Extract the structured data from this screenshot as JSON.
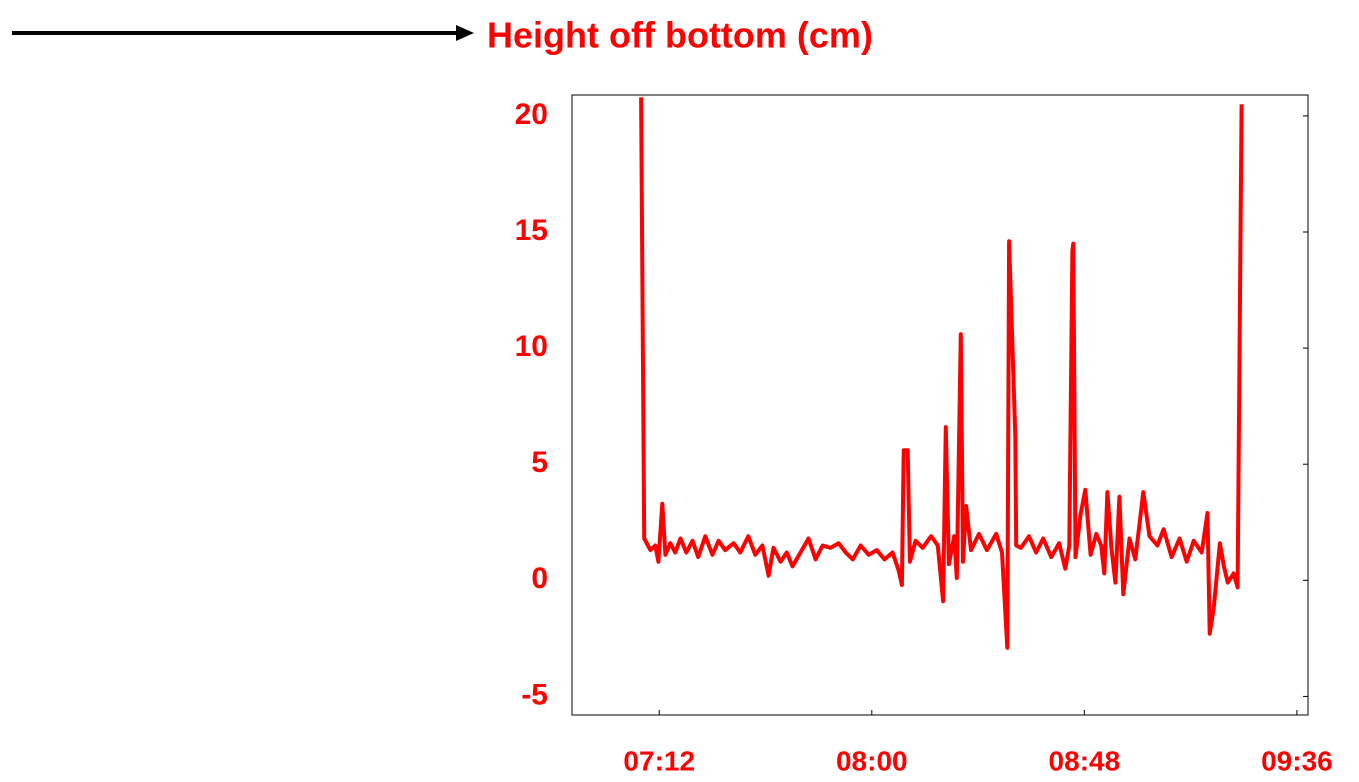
{
  "chart_data": {
    "type": "line",
    "title": "Height off bottom (cm)",
    "color": "#ff0000",
    "x": [
      427.9,
      428.6,
      430.0,
      431.1,
      431.8,
      432.7,
      433.4,
      434.5,
      435.6,
      436.8,
      438.1,
      439.5,
      440.8,
      442.4,
      444.0,
      445.4,
      446.9,
      448.8,
      450.3,
      452.1,
      453.7,
      455.3,
      456.7,
      457.8,
      459.4,
      460.8,
      462.1,
      463.9,
      465.7,
      467.3,
      468.9,
      470.7,
      472.5,
      474.1,
      475.7,
      477.5,
      479.3,
      481.1,
      482.9,
      484.7,
      486.1,
      486.8,
      487.2,
      488.1,
      488.6,
      489.9,
      491.5,
      493.4,
      494.9,
      496.1,
      496.7,
      497.4,
      498.6,
      499.2,
      500.1,
      500.6,
      501.3,
      502.4,
      504.2,
      506.0,
      508.1,
      509.4,
      510.6,
      511.0,
      512.4,
      512.6,
      513.7,
      515.5,
      517.1,
      518.7,
      520.5,
      522.3,
      523.7,
      524.6,
      525.3,
      525.5,
      526.0,
      527.1,
      528.2,
      529.4,
      530.7,
      531.8,
      532.5,
      533.2,
      534.1,
      535.0,
      535.9,
      536.8,
      538.2,
      539.5,
      541.3,
      542.7,
      544.5,
      545.9,
      547.7,
      549.5,
      551.1,
      552.7,
      554.5,
      555.8,
      556.3,
      557.2,
      558.6,
      559.5,
      560.4,
      561.7,
      562.6,
      563.5
    ],
    "values": [
      20.8,
      1.8,
      1.3,
      1.5,
      0.8,
      3.3,
      1.1,
      1.6,
      1.2,
      1.8,
      1.2,
      1.7,
      1.0,
      1.9,
      1.1,
      1.7,
      1.3,
      1.6,
      1.2,
      1.9,
      1.1,
      1.5,
      0.2,
      1.4,
      0.8,
      1.2,
      0.6,
      1.2,
      1.8,
      0.9,
      1.5,
      1.4,
      1.6,
      1.2,
      0.9,
      1.5,
      1.1,
      1.3,
      0.9,
      1.2,
      0.4,
      -0.2,
      5.6,
      5.6,
      0.8,
      1.7,
      1.4,
      1.9,
      1.5,
      -0.9,
      6.6,
      0.7,
      1.9,
      0.1,
      10.6,
      0.8,
      3.2,
      1.3,
      2.0,
      1.3,
      2.0,
      1.2,
      -2.9,
      14.6,
      6.2,
      1.5,
      1.4,
      1.9,
      1.2,
      1.8,
      1.0,
      1.6,
      0.5,
      1.5,
      14.2,
      14.5,
      1.0,
      2.8,
      3.9,
      1.1,
      2.0,
      1.5,
      0.3,
      3.8,
      1.4,
      -0.1,
      3.6,
      -0.6,
      1.8,
      0.9,
      3.8,
      1.9,
      1.5,
      2.2,
      1.0,
      1.8,
      0.8,
      1.7,
      1.2,
      2.9,
      -2.3,
      -1.2,
      1.6,
      0.6,
      -0.1,
      0.3,
      -0.3,
      20.5
    ],
    "xlim": [
      412.3,
      578.5
    ],
    "xticks": [
      {
        "value": 432,
        "label": "07:12"
      },
      {
        "value": 480,
        "label": "08:00"
      },
      {
        "value": 528,
        "label": "08:48"
      },
      {
        "value": 576,
        "label": "09:36"
      }
    ],
    "ylim": [
      -5.8,
      20.9
    ],
    "yticks": [
      -5,
      0,
      5,
      10,
      15,
      20
    ]
  }
}
